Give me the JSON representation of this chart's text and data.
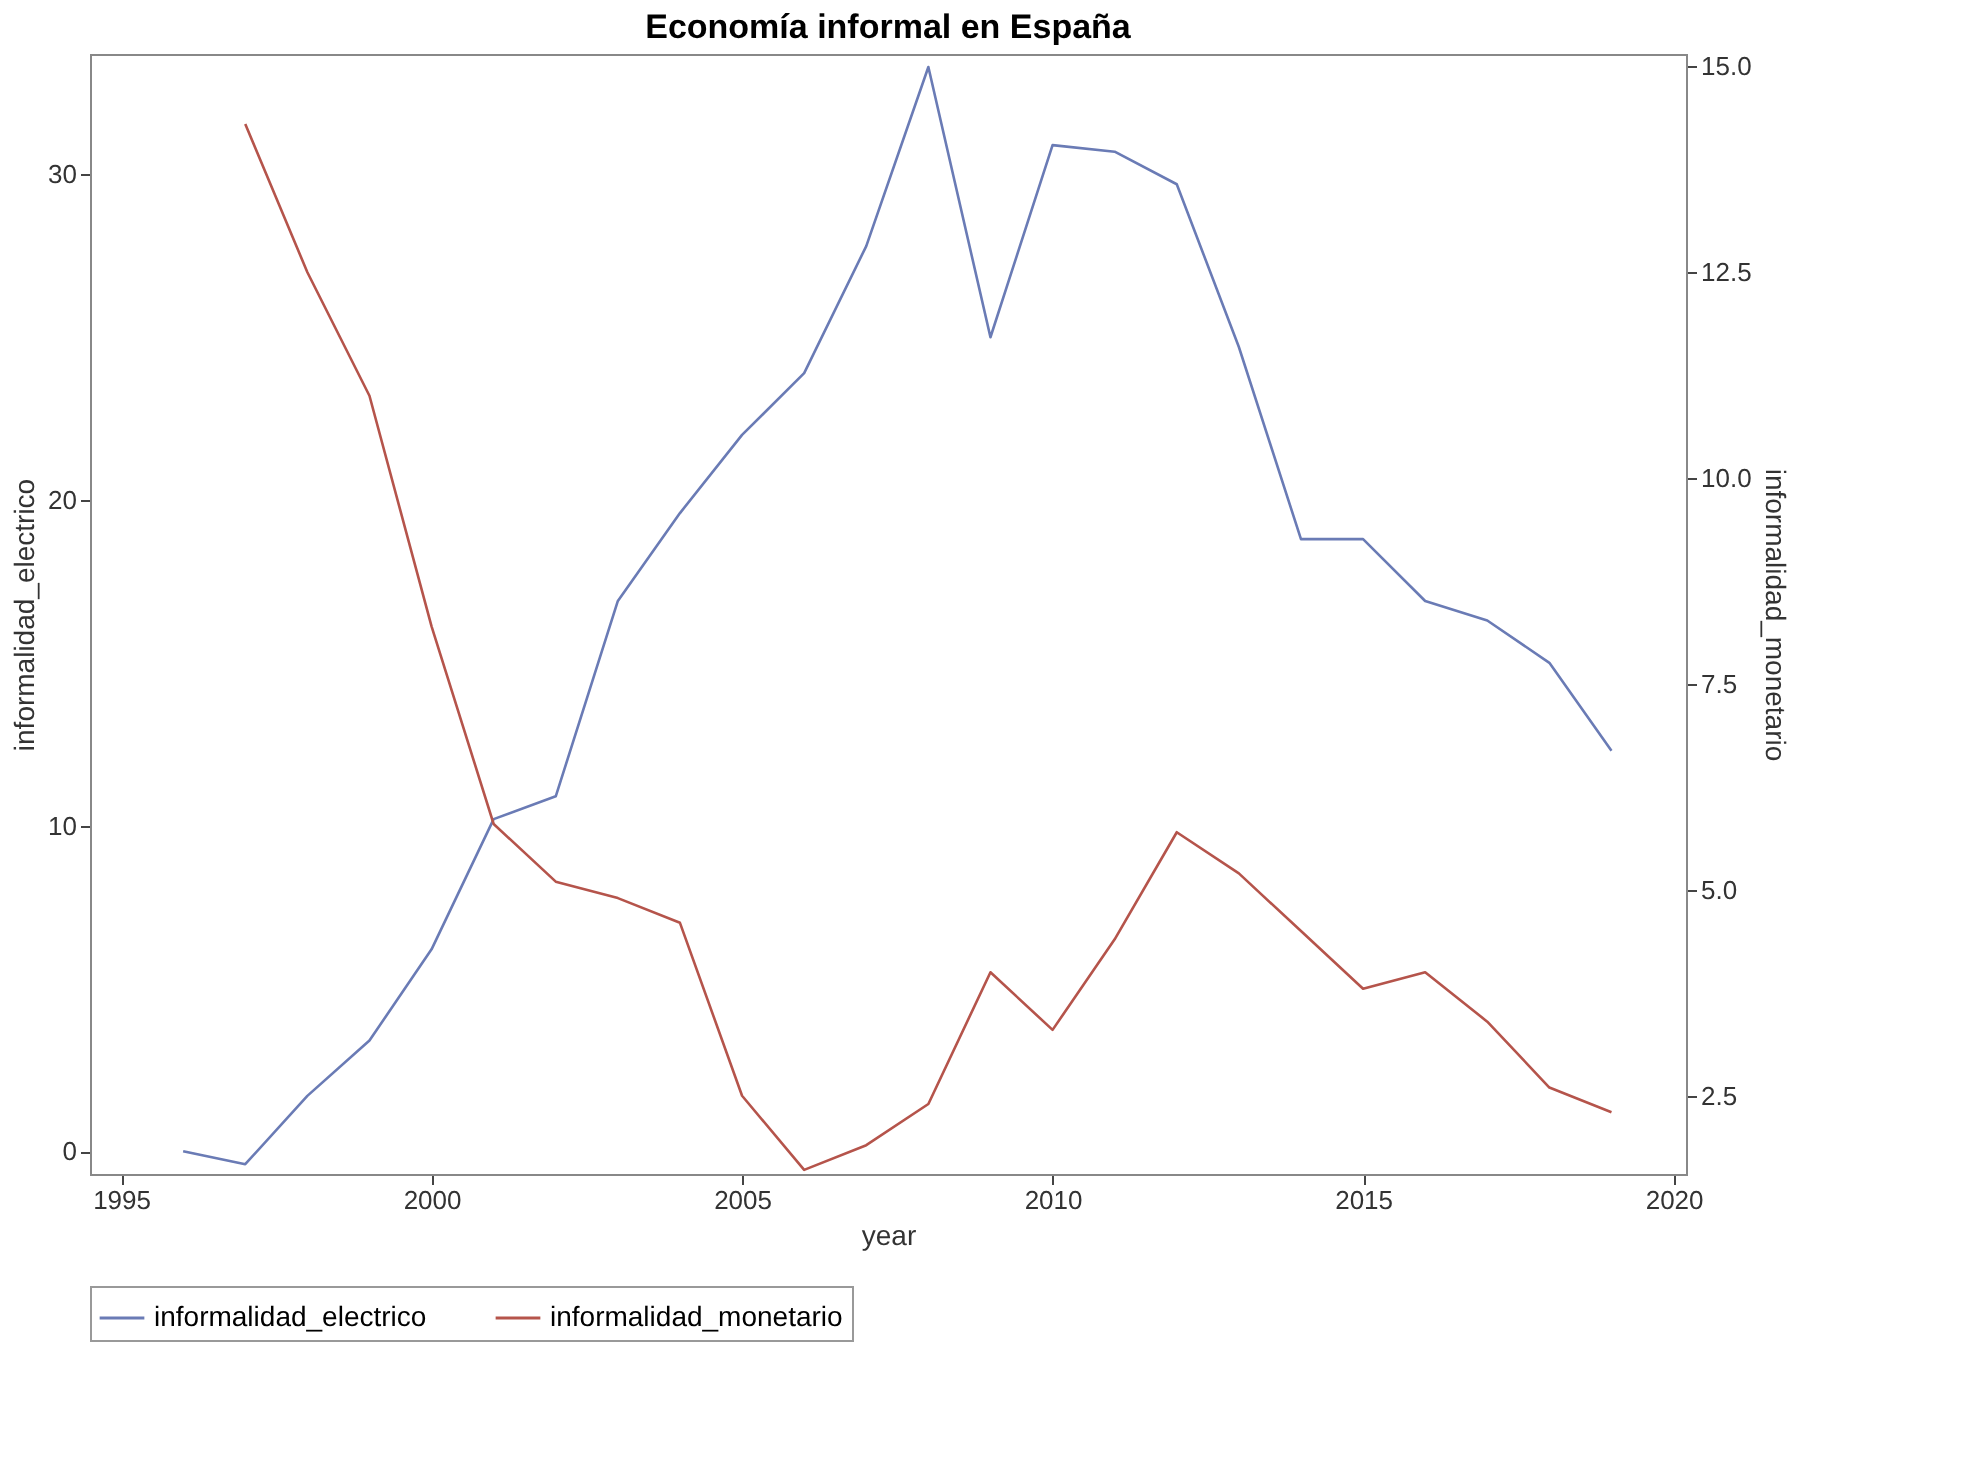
{
  "chart_data": {
    "type": "line",
    "title": "Economía informal en España",
    "xlabel": "year",
    "ylabel": "informalidad_electrico",
    "y2label": "informalidad_monetario",
    "x": [
      1996,
      1997,
      1998,
      1999,
      2000,
      2001,
      2002,
      2003,
      2004,
      2005,
      2006,
      2007,
      2008,
      2009,
      2010,
      2011,
      2012,
      2013,
      2014,
      2015,
      2016,
      2017,
      2018,
      2019
    ],
    "series": [
      {
        "name": "informalidad_electrico",
        "color": "#6a7bb5",
        "values": [
          0.0,
          -0.4,
          1.7,
          3.4,
          6.2,
          10.2,
          10.9,
          16.9,
          19.6,
          22.0,
          23.9,
          27.8,
          33.3,
          25.0,
          30.9,
          30.7,
          29.7,
          24.7,
          18.8,
          18.8,
          16.9,
          16.3,
          15.0,
          12.3
        ]
      },
      {
        "name": "informalidad_monetario",
        "color": "#b5544b",
        "axis": "y2",
        "values": [
          null,
          14.3,
          12.5,
          11.0,
          8.2,
          5.8,
          5.1,
          4.9,
          4.6,
          2.5,
          1.6,
          1.9,
          2.4,
          4.0,
          3.3,
          4.4,
          5.7,
          5.2,
          4.5,
          3.8,
          4.0,
          3.4,
          2.6,
          2.3
        ]
      }
    ],
    "xlim": [
      1994.5,
      2020.2
    ],
    "xticks": [
      1995,
      2000,
      2005,
      2010,
      2015,
      2020
    ],
    "ylim": [
      -0.7,
      33.7
    ],
    "yticks": [
      0,
      10,
      20,
      30
    ],
    "y2lim": [
      1.55,
      15.15
    ],
    "y2ticks": [
      {
        "value": 2.5,
        "label": "2.5"
      },
      {
        "value": 5,
        "label": "5.0"
      },
      {
        "value": 7.5,
        "label": "7.5"
      },
      {
        "value": 10,
        "label": "10.0"
      },
      {
        "value": 12.5,
        "label": "12.5"
      },
      {
        "value": 15,
        "label": "15.0"
      }
    ],
    "grid": false,
    "legend": "bottom",
    "marker": "none",
    "line_style": "solid"
  }
}
